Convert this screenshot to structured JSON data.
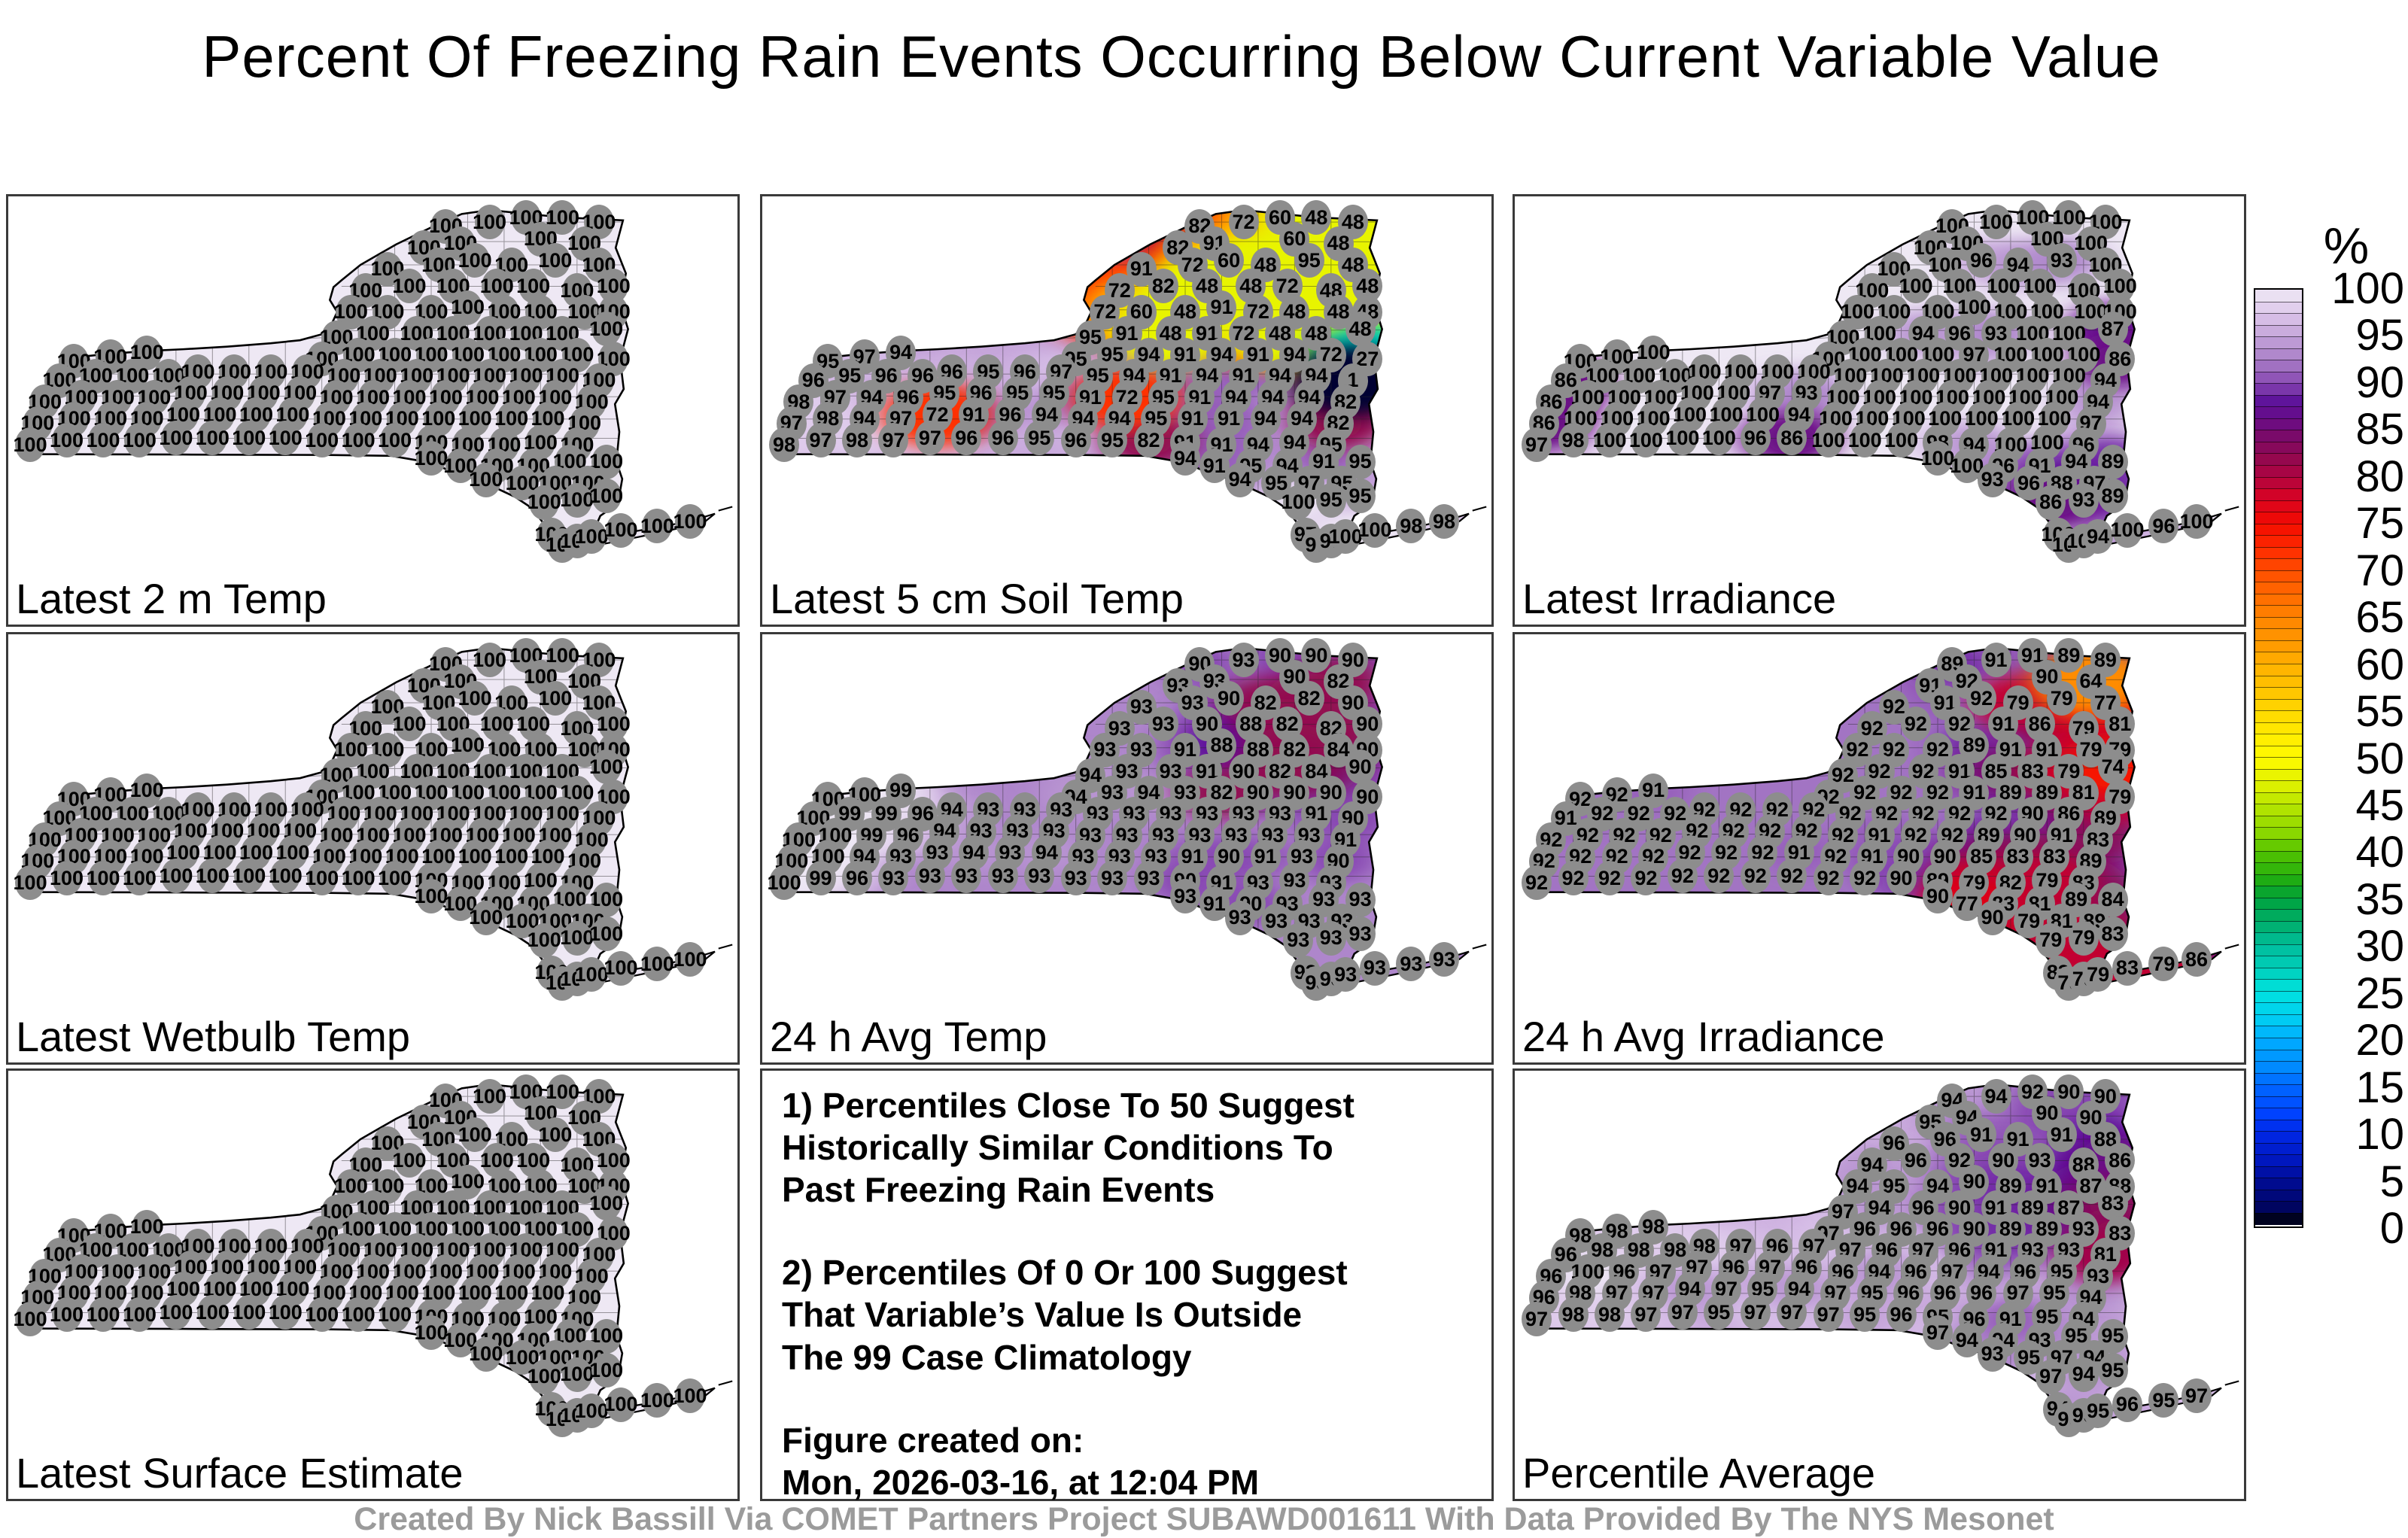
{
  "title": "Percent Of Freezing Rain Events Occurring Below Current Variable Value",
  "credit": "Created By Nick Bassill Via COMET Partners Project SUBAWD001611 With Data Provided By The NYS Mesonet",
  "colorbar": {
    "unit": "%",
    "min": 0,
    "max": 100,
    "ticks": [
      100,
      95,
      90,
      85,
      80,
      75,
      70,
      65,
      60,
      55,
      50,
      45,
      40,
      35,
      30,
      25,
      20,
      15,
      10,
      5,
      0
    ],
    "stops": [
      [
        0,
        "#000000"
      ],
      [
        2,
        "#000566"
      ],
      [
        5,
        "#000c9a"
      ],
      [
        7,
        "#0018c0"
      ],
      [
        10,
        "#0028e8"
      ],
      [
        12,
        "#0044ff"
      ],
      [
        15,
        "#0068ff"
      ],
      [
        17,
        "#008cff"
      ],
      [
        20,
        "#00aeff"
      ],
      [
        22,
        "#00cdf2"
      ],
      [
        25,
        "#00e2df"
      ],
      [
        27,
        "#00d2c0"
      ],
      [
        30,
        "#00bd9a"
      ],
      [
        32,
        "#00b070"
      ],
      [
        35,
        "#00a23c"
      ],
      [
        37,
        "#20ad10"
      ],
      [
        40,
        "#55c400"
      ],
      [
        42,
        "#8cd800"
      ],
      [
        45,
        "#b9e600"
      ],
      [
        47,
        "#ddf000"
      ],
      [
        50,
        "#fffb00"
      ],
      [
        52,
        "#ffee00"
      ],
      [
        55,
        "#ffd800"
      ],
      [
        57,
        "#ffc600"
      ],
      [
        60,
        "#ffb000"
      ],
      [
        62,
        "#ff9b00"
      ],
      [
        65,
        "#ff8400"
      ],
      [
        67,
        "#ff6f00"
      ],
      [
        70,
        "#ff4d00"
      ],
      [
        72,
        "#ff3000"
      ],
      [
        75,
        "#f30b00"
      ],
      [
        78,
        "#d40326"
      ],
      [
        80,
        "#b00440"
      ],
      [
        82,
        "#93084f"
      ],
      [
        84,
        "#7d0a64"
      ],
      [
        86,
        "#6b0c85"
      ],
      [
        88,
        "#5c1199"
      ],
      [
        90,
        "#8747b2"
      ],
      [
        92.5,
        "#a97fc7"
      ],
      [
        95,
        "#c4a3d9"
      ],
      [
        97.5,
        "#dcc6ea"
      ],
      [
        100,
        "#eee8f4"
      ]
    ]
  },
  "notes": {
    "paragraphs": [
      {
        "lines": [
          "1) Percentiles Close To 50 Suggest",
          "Historically Similar Conditions To",
          "Past Freezing Rain Events"
        ]
      },
      {
        "lines": [
          "2) Percentiles Of 0 Or 100 Suggest",
          "That Variable’s Value Is Outside",
          "The 99 Case Climatology"
        ]
      },
      {
        "lines": [
          "Figure created on:",
          "Mon, 2026-03-16, at 12:04 PM"
        ]
      }
    ]
  },
  "stations_xy": [
    [
      60,
      7
    ],
    [
      66,
      6
    ],
    [
      71,
      5
    ],
    [
      76,
      5
    ],
    [
      81,
      6
    ],
    [
      57,
      12
    ],
    [
      62,
      11
    ],
    [
      73,
      10
    ],
    [
      79,
      11
    ],
    [
      52,
      17
    ],
    [
      59,
      16
    ],
    [
      64,
      15
    ],
    [
      69,
      16
    ],
    [
      75,
      15
    ],
    [
      81,
      16
    ],
    [
      49,
      22
    ],
    [
      55,
      21
    ],
    [
      61,
      21
    ],
    [
      67,
      21
    ],
    [
      72,
      21
    ],
    [
      78,
      22
    ],
    [
      83,
      21
    ],
    [
      47,
      27
    ],
    [
      52,
      27
    ],
    [
      58,
      27
    ],
    [
      63,
      26
    ],
    [
      68,
      27
    ],
    [
      73,
      27
    ],
    [
      79,
      27
    ],
    [
      83,
      27
    ],
    [
      45,
      33
    ],
    [
      50,
      32
    ],
    [
      56,
      32
    ],
    [
      61,
      32
    ],
    [
      66,
      32
    ],
    [
      71,
      32
    ],
    [
      76,
      32
    ],
    [
      82,
      31
    ],
    [
      9,
      38.5
    ],
    [
      14,
      37.5
    ],
    [
      19,
      36.5
    ],
    [
      43,
      38
    ],
    [
      48,
      37
    ],
    [
      53,
      37
    ],
    [
      58,
      37
    ],
    [
      63,
      37
    ],
    [
      68,
      37
    ],
    [
      73,
      37
    ],
    [
      78,
      37
    ],
    [
      83,
      38
    ],
    [
      7,
      43
    ],
    [
      12,
      42
    ],
    [
      17,
      42
    ],
    [
      22,
      42
    ],
    [
      26,
      41
    ],
    [
      31,
      41
    ],
    [
      36,
      41
    ],
    [
      41,
      41
    ],
    [
      46,
      42
    ],
    [
      51,
      42
    ],
    [
      56,
      42
    ],
    [
      61,
      42
    ],
    [
      66,
      42
    ],
    [
      71,
      42
    ],
    [
      76,
      42
    ],
    [
      81,
      43
    ],
    [
      5,
      48
    ],
    [
      10,
      47
    ],
    [
      15,
      47
    ],
    [
      20,
      47
    ],
    [
      25,
      46
    ],
    [
      30,
      46
    ],
    [
      35,
      46
    ],
    [
      40,
      46
    ],
    [
      45,
      47
    ],
    [
      50,
      47
    ],
    [
      55,
      47
    ],
    [
      60,
      47
    ],
    [
      65,
      47
    ],
    [
      70,
      47
    ],
    [
      75,
      47
    ],
    [
      80,
      48
    ],
    [
      4,
      53
    ],
    [
      9,
      52
    ],
    [
      14,
      52
    ],
    [
      19,
      52
    ],
    [
      24,
      51
    ],
    [
      29,
      51
    ],
    [
      34,
      51
    ],
    [
      39,
      51
    ],
    [
      44,
      52
    ],
    [
      49,
      52
    ],
    [
      54,
      52
    ],
    [
      59,
      52
    ],
    [
      64,
      52
    ],
    [
      69,
      52
    ],
    [
      74,
      52
    ],
    [
      79,
      53
    ],
    [
      3,
      58
    ],
    [
      8,
      57
    ],
    [
      13,
      57
    ],
    [
      18,
      57
    ],
    [
      23,
      56.5
    ],
    [
      28,
      56.5
    ],
    [
      33,
      56.5
    ],
    [
      38,
      56.5
    ],
    [
      43,
      57
    ],
    [
      48,
      57
    ],
    [
      53,
      57
    ],
    [
      58,
      57.5
    ],
    [
      63,
      58
    ],
    [
      68,
      58
    ],
    [
      73,
      57.5
    ],
    [
      78,
      58
    ],
    [
      58,
      61.2
    ],
    [
      62,
      63
    ],
    [
      67,
      63
    ],
    [
      72,
      63
    ],
    [
      77,
      62
    ],
    [
      82,
      62
    ],
    [
      65.5,
      66.2
    ],
    [
      70.5,
      67
    ],
    [
      75,
      67
    ],
    [
      79.5,
      67
    ],
    [
      73.5,
      71.5
    ],
    [
      78,
      71
    ],
    [
      82,
      70
    ],
    [
      74.5,
      79
    ],
    [
      76,
      81.5
    ],
    [
      78,
      80.5
    ],
    [
      80,
      79.5
    ],
    [
      84,
      78
    ],
    [
      89,
      77
    ],
    [
      93.5,
      76
    ]
  ],
  "panels": [
    {
      "type": "map",
      "id": "latest-2m-temp",
      "label": "Latest 2 m Temp",
      "base": 100,
      "uniform": 100
    },
    {
      "type": "map",
      "id": "latest-5cm-soil-temp",
      "label": "Latest 5 cm Soil Temp",
      "base": 95,
      "values": [
        82,
        72,
        60,
        48,
        48,
        82,
        91,
        60,
        48,
        91,
        72,
        60,
        48,
        95,
        48,
        72,
        82,
        48,
        48,
        72,
        48,
        48,
        72,
        60,
        48,
        91,
        72,
        48,
        48,
        48,
        95,
        91,
        48,
        91,
        72,
        48,
        48,
        48,
        95,
        97,
        94,
        95,
        95,
        94,
        91,
        94,
        91,
        94,
        72,
        27,
        96,
        95,
        96,
        96,
        96,
        95,
        96,
        97,
        95,
        94,
        91,
        94,
        91,
        94,
        94,
        1,
        98,
        97,
        94,
        96,
        95,
        96,
        95,
        95,
        91,
        72,
        95,
        91,
        94,
        94,
        94,
        82,
        97,
        98,
        94,
        97,
        72,
        91,
        96,
        94,
        94,
        94,
        95,
        91,
        91,
        94,
        94,
        82,
        98,
        97,
        98,
        97,
        97,
        96,
        96,
        95,
        96,
        95,
        82,
        91,
        91,
        94,
        94,
        95,
        94,
        91,
        95,
        94,
        91,
        95,
        94,
        95,
        97,
        95,
        100,
        95,
        95,
        97,
        97,
        97,
        100,
        100,
        98,
        98
      ]
    },
    {
      "type": "map",
      "id": "latest-irradiance",
      "label": "Latest Irradiance",
      "base": 100,
      "values": [
        100,
        100,
        100,
        100,
        100,
        100,
        100,
        100,
        100,
        100,
        100,
        96,
        94,
        93,
        100,
        100,
        100,
        100,
        100,
        100,
        100,
        100,
        100,
        100,
        100,
        100,
        100,
        100,
        100,
        100,
        100,
        100,
        94,
        96,
        93,
        100,
        100,
        87,
        100,
        100,
        100,
        100,
        100,
        100,
        100,
        97,
        100,
        100,
        100,
        86,
        86,
        100,
        100,
        100,
        100,
        100,
        100,
        100,
        100,
        100,
        100,
        100,
        100,
        100,
        100,
        94,
        86,
        100,
        100,
        100,
        100,
        100,
        97,
        93,
        100,
        100,
        100,
        100,
        100,
        100,
        100,
        94,
        86,
        100,
        100,
        100,
        100,
        100,
        100,
        94,
        100,
        100,
        100,
        100,
        100,
        100,
        100,
        97,
        97,
        98,
        100,
        100,
        100,
        100,
        96,
        86,
        100,
        100,
        100,
        98,
        94,
        100,
        100,
        96,
        100,
        100,
        96,
        91,
        94,
        89,
        93,
        96,
        88,
        97,
        86,
        93,
        89,
        100,
        100,
        100,
        94,
        100,
        96,
        100
      ]
    },
    {
      "type": "map",
      "id": "latest-wetbulb-temp",
      "label": "Latest Wetbulb Temp",
      "base": 100,
      "uniform": 100
    },
    {
      "type": "map",
      "id": "avg-24h-temp",
      "label": "24 h Avg Temp",
      "base": 93,
      "values": [
        90,
        93,
        90,
        90,
        90,
        93,
        93,
        90,
        82,
        93,
        93,
        90,
        82,
        82,
        90,
        93,
        93,
        90,
        88,
        82,
        82,
        90,
        93,
        93,
        91,
        88,
        88,
        82,
        84,
        90,
        94,
        93,
        93,
        91,
        90,
        82,
        84,
        90,
        100,
        100,
        99,
        94,
        93,
        94,
        93,
        82,
        90,
        90,
        90,
        90,
        100,
        99,
        99,
        96,
        94,
        93,
        93,
        93,
        93,
        93,
        93,
        93,
        93,
        93,
        91,
        90,
        100,
        100,
        99,
        96,
        94,
        93,
        93,
        93,
        93,
        93,
        93,
        93,
        93,
        93,
        93,
        91,
        100,
        100,
        94,
        93,
        93,
        94,
        93,
        94,
        93,
        93,
        93,
        91,
        90,
        91,
        93,
        90,
        100,
        99,
        96,
        93,
        93,
        93,
        93,
        93,
        93,
        93,
        93,
        90,
        91,
        93,
        93,
        93,
        93,
        91,
        90,
        93,
        93,
        93,
        93,
        93,
        93,
        93,
        93,
        93,
        93,
        93,
        93,
        93,
        93,
        93,
        93,
        93
      ]
    },
    {
      "type": "map",
      "id": "avg-24h-irradiance",
      "label": "24 h Avg Irradiance",
      "base": 92,
      "values": [
        89,
        91,
        91,
        89,
        89,
        91,
        92,
        90,
        64,
        92,
        91,
        92,
        79,
        79,
        77,
        92,
        92,
        92,
        91,
        86,
        79,
        81,
        92,
        92,
        92,
        89,
        91,
        91,
        79,
        79,
        92,
        92,
        92,
        91,
        85,
        83,
        79,
        74,
        92,
        92,
        91,
        92,
        92,
        92,
        92,
        91,
        89,
        89,
        81,
        79,
        91,
        92,
        92,
        92,
        92,
        92,
        92,
        92,
        92,
        92,
        92,
        92,
        92,
        90,
        86,
        89,
        92,
        92,
        92,
        92,
        92,
        92,
        92,
        92,
        92,
        91,
        92,
        92,
        89,
        90,
        91,
        83,
        92,
        92,
        92,
        92,
        92,
        92,
        92,
        91,
        92,
        91,
        90,
        90,
        85,
        83,
        83,
        89,
        92,
        92,
        92,
        92,
        92,
        92,
        92,
        92,
        92,
        92,
        90,
        89,
        79,
        82,
        79,
        83,
        90,
        77,
        83,
        81,
        89,
        84,
        90,
        79,
        81,
        89,
        79,
        79,
        83,
        83,
        79,
        79,
        79,
        83,
        79,
        86
      ]
    },
    {
      "type": "map",
      "id": "latest-surface-estimate",
      "label": "Latest Surface Estimate",
      "base": 100,
      "uniform": 100
    },
    {
      "type": "notes",
      "id": "notes-panel"
    },
    {
      "type": "map",
      "id": "percentile-average",
      "label": "Percentile Average",
      "base": 96,
      "values": [
        94,
        94,
        92,
        90,
        90,
        95,
        94,
        90,
        90,
        96,
        96,
        91,
        91,
        91,
        88,
        94,
        96,
        92,
        90,
        93,
        88,
        86,
        94,
        95,
        94,
        90,
        89,
        91,
        87,
        88,
        97,
        94,
        96,
        90,
        91,
        89,
        87,
        83,
        98,
        98,
        98,
        97,
        96,
        96,
        96,
        90,
        89,
        89,
        93,
        83,
        96,
        98,
        98,
        98,
        98,
        97,
        96,
        97,
        97,
        96,
        97,
        96,
        91,
        93,
        93,
        81,
        96,
        100,
        96,
        97,
        97,
        96,
        97,
        96,
        96,
        94,
        96,
        97,
        94,
        96,
        95,
        93,
        96,
        98,
        97,
        97,
        94,
        97,
        95,
        94,
        97,
        95,
        96,
        96,
        96,
        97,
        95,
        94,
        97,
        98,
        98,
        97,
        97,
        95,
        97,
        97,
        97,
        95,
        96,
        95,
        96,
        91,
        95,
        94,
        97,
        94,
        94,
        93,
        95,
        95,
        93,
        95,
        97,
        94,
        97,
        94,
        95,
        94,
        96,
        95,
        95,
        96,
        95,
        97
      ]
    }
  ]
}
